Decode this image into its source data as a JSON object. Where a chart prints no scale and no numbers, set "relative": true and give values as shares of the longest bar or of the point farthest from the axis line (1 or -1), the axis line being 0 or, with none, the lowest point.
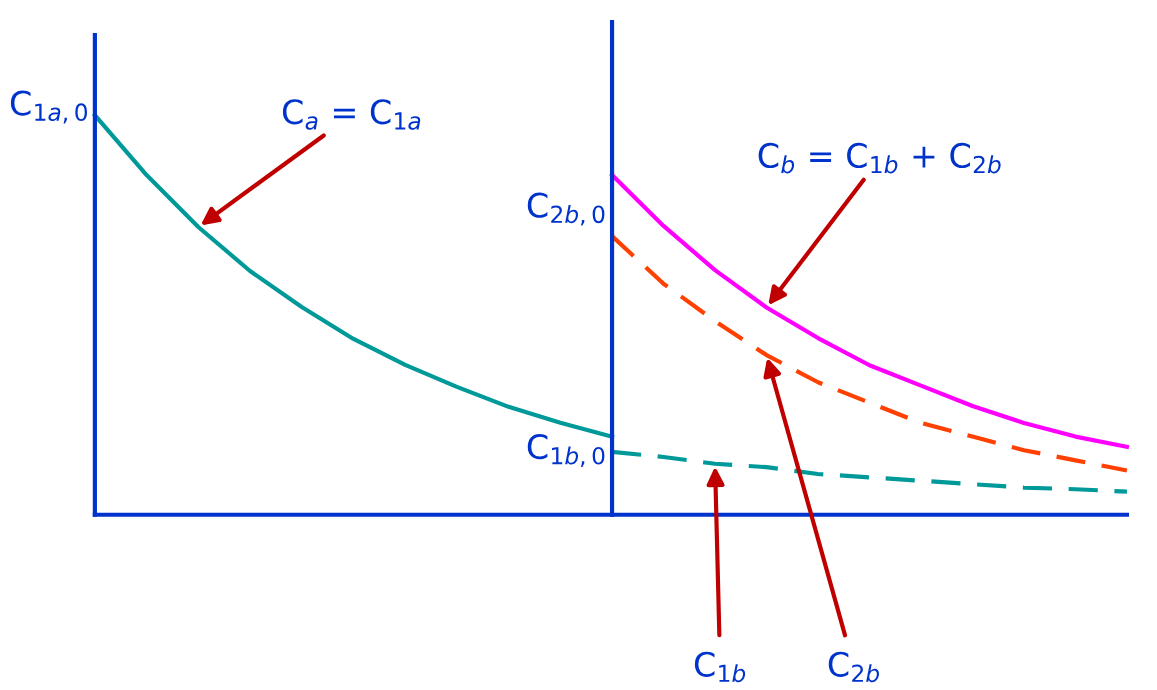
{
  "chart_data": [
    {
      "type": "line",
      "relative": true,
      "categories": [
        null,
        null,
        null,
        null,
        null,
        null,
        null,
        null,
        null,
        null,
        null
      ],
      "grid": false,
      "legend": false,
      "marker": "none",
      "annotations": [
        "C$_{1a,0}$",
        "C$_{a}$ = C$_{1a}$"
      ],
      "series": [
        {
          "color": "#009999",
          "line_style": "solid",
          "values": [
            1,
            0.85,
            0.72,
            0.61,
            0.52,
            0.44,
            0.375,
            0.32,
            0.27,
            0.23,
            0.195
          ]
        }
      ]
    },
    {
      "type": "line",
      "relative": true,
      "categories": [
        null,
        null,
        null,
        null,
        null,
        null,
        null,
        null,
        null,
        null,
        null
      ],
      "grid": false,
      "legend": false,
      "marker": "none",
      "annotations": [
        "C$_{2b,0}$",
        "C$_{1b,0}$",
        "C$_{b}$ = C$_{1b}$ + C$_{2b}$"
      ],
      "series": [
        {
          "color": "#ff00ff",
          "line_style": "solid",
          "values": [
            1,
            0.85,
            0.72,
            0.61,
            0.52,
            0.44,
            0.38,
            0.32,
            0.27,
            0.23,
            0.2
          ]
        },
        {
          "name": "C$_{2b}$",
          "color": "#ff4000",
          "line_style": "dashed",
          "values": [
            0.82,
            0.68,
            0.57,
            0.47,
            0.39,
            0.33,
            0.27,
            0.23,
            0.19,
            0.16,
            0.13
          ]
        },
        {
          "name": "C$_{1b}$",
          "color": "#009999",
          "line_style": "dashed",
          "values": [
            0.185,
            0.17,
            0.15,
            0.14,
            0.12,
            0.11,
            0.1,
            0.09,
            0.08,
            0.075,
            0.068
          ]
        }
      ]
    }
  ]
}
